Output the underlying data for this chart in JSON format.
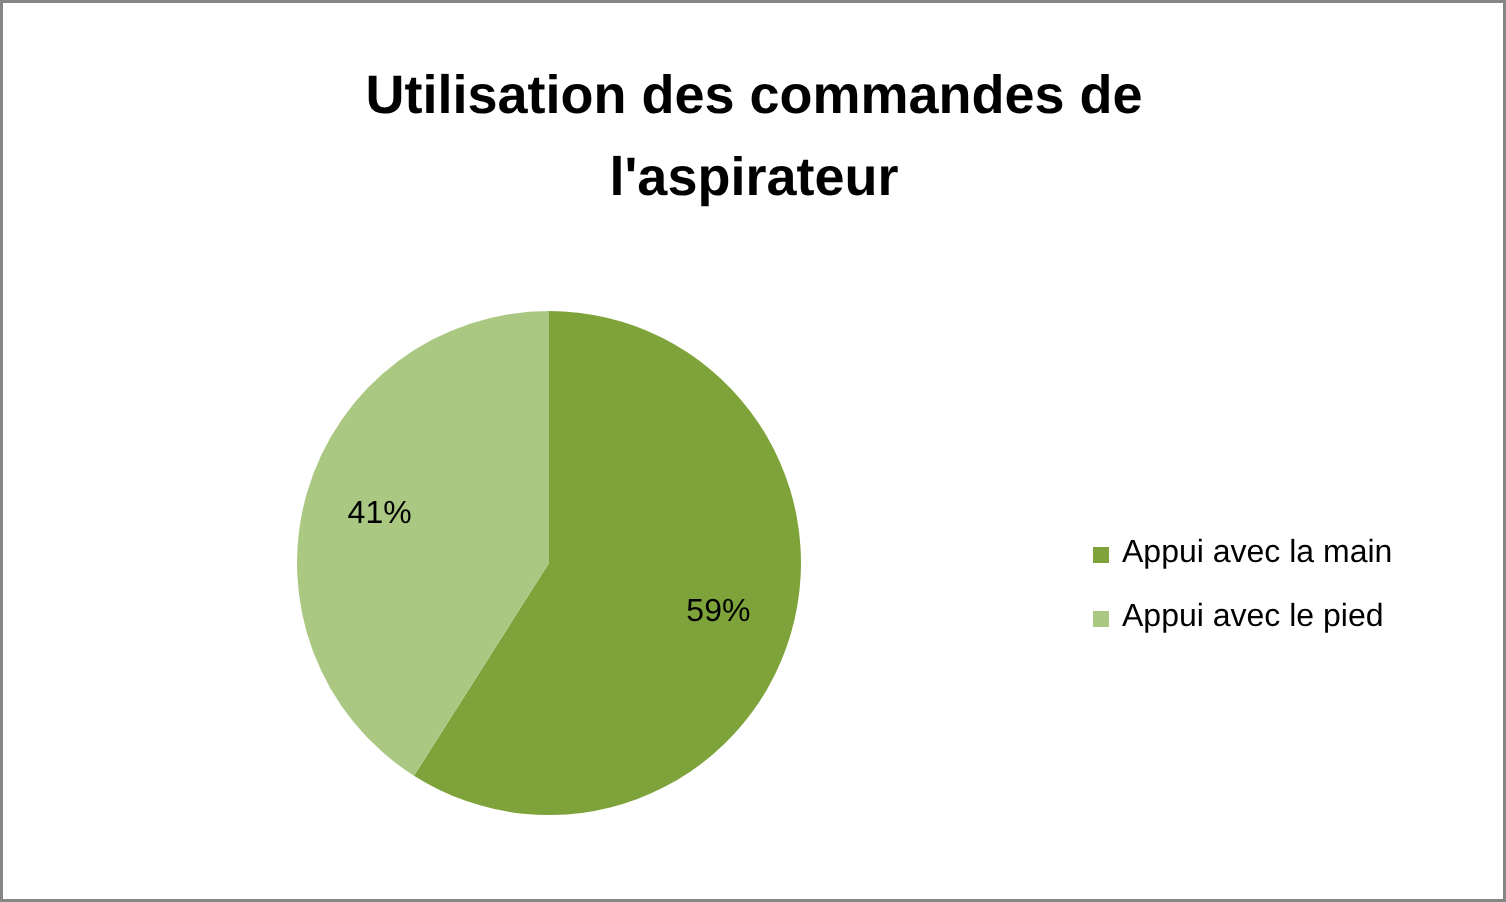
{
  "chart_data": {
    "type": "pie",
    "title": "Utilisation des commandes de l'aspirateur",
    "categories": [
      "Appui avec la main",
      "Appui avec le pied"
    ],
    "values": [
      59,
      41
    ],
    "colors": [
      "#7fa33b",
      "#aac882"
    ],
    "value_labels": [
      "59%",
      "41%"
    ],
    "legend": "right"
  }
}
